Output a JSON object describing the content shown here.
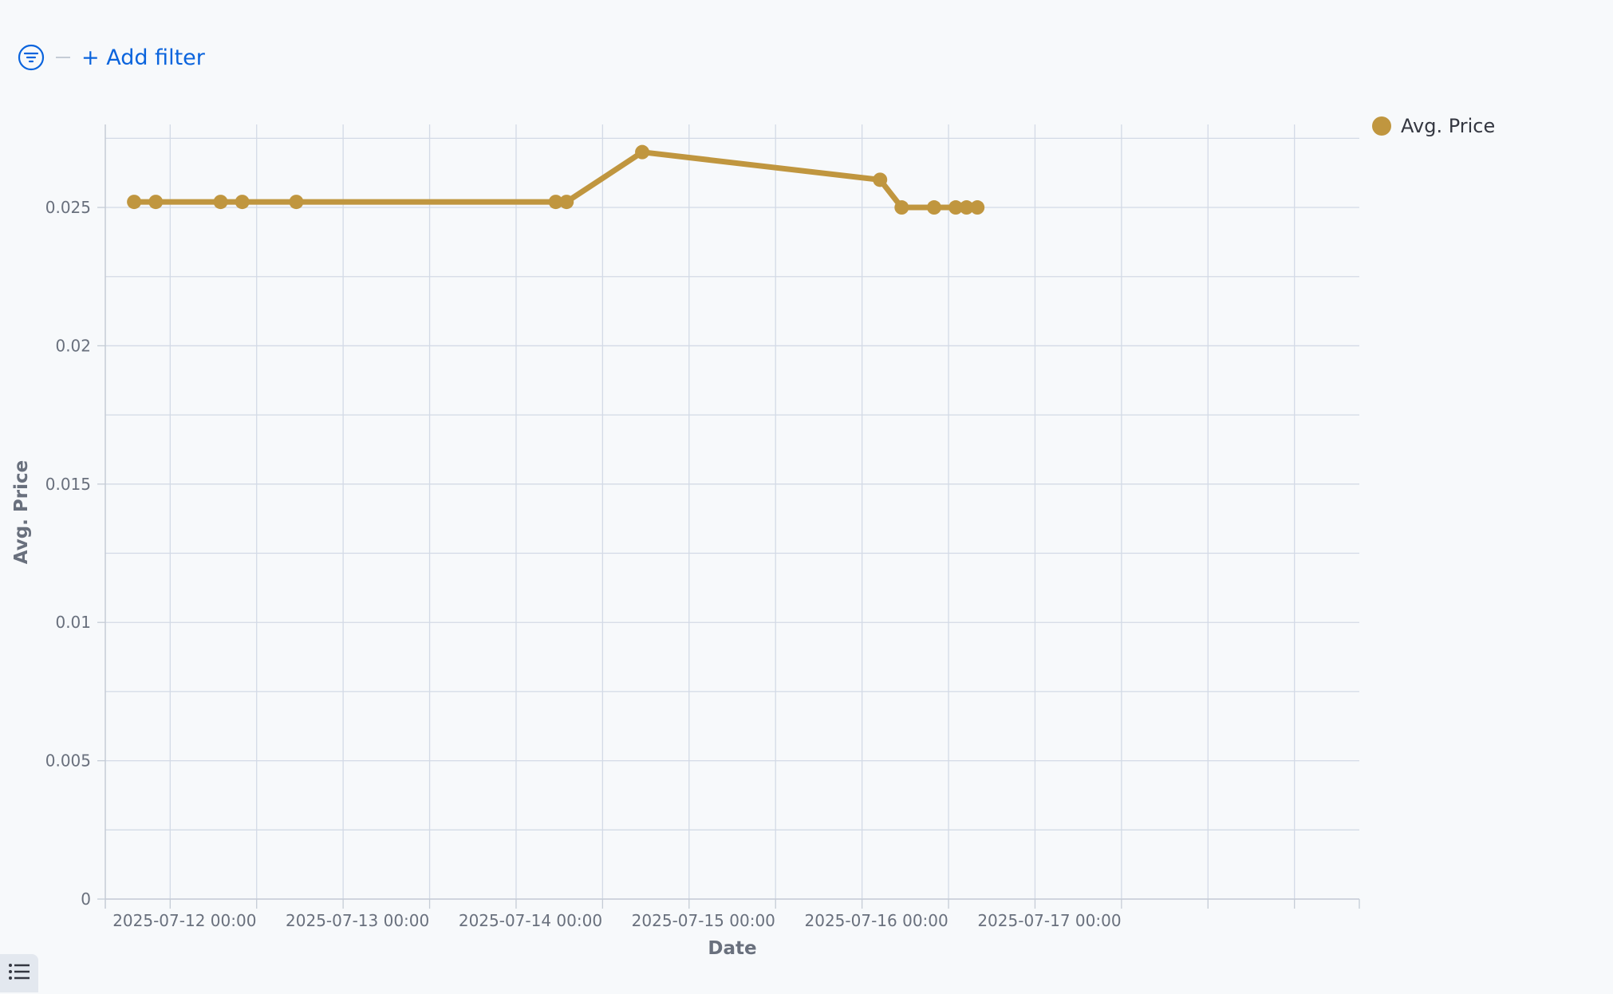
{
  "filter_bar": {
    "add_filter_label": "+ Add filter",
    "filter_icon": "filter-icon"
  },
  "legend_toggle_icon": "list-icon",
  "colors": {
    "series": "#c0963f",
    "grid": "#d3dae6",
    "axis_text": "#69707d",
    "axis_title": "#69707d",
    "link": "#0b64dd"
  },
  "chart_data": {
    "type": "line",
    "xlabel": "Date",
    "ylabel": "Avg. Price",
    "legend_position": "top-right",
    "grid": true,
    "ylim": [
      0,
      0.028
    ],
    "xlim": [
      "2025-07-11 15:00",
      "2025-07-18 21:00"
    ],
    "y_ticks": [
      "0",
      "0.005",
      "0.01",
      "0.015",
      "0.02",
      "0.025"
    ],
    "x_ticks": [
      "2025-07-12 00:00",
      "2025-07-13 00:00",
      "2025-07-14 00:00",
      "2025-07-15 00:00",
      "2025-07-16 00:00",
      "2025-07-17 00:00"
    ],
    "series": [
      {
        "name": "Avg. Price",
        "color": "#c0963f",
        "points": [
          {
            "x": "2025-07-11 19:00",
            "y": 0.0252
          },
          {
            "x": "2025-07-11 22:00",
            "y": 0.0252
          },
          {
            "x": "2025-07-12 07:00",
            "y": 0.0252
          },
          {
            "x": "2025-07-12 10:00",
            "y": 0.0252
          },
          {
            "x": "2025-07-12 17:30",
            "y": 0.0252
          },
          {
            "x": "2025-07-14 05:30",
            "y": 0.0252
          },
          {
            "x": "2025-07-14 07:00",
            "y": 0.0252
          },
          {
            "x": "2025-07-14 17:30",
            "y": 0.027
          },
          {
            "x": "2025-07-16 02:30",
            "y": 0.026
          },
          {
            "x": "2025-07-16 05:30",
            "y": 0.025
          },
          {
            "x": "2025-07-16 10:00",
            "y": 0.025
          },
          {
            "x": "2025-07-16 13:00",
            "y": 0.025
          },
          {
            "x": "2025-07-16 14:30",
            "y": 0.025
          },
          {
            "x": "2025-07-16 16:00",
            "y": 0.025
          }
        ]
      }
    ]
  }
}
